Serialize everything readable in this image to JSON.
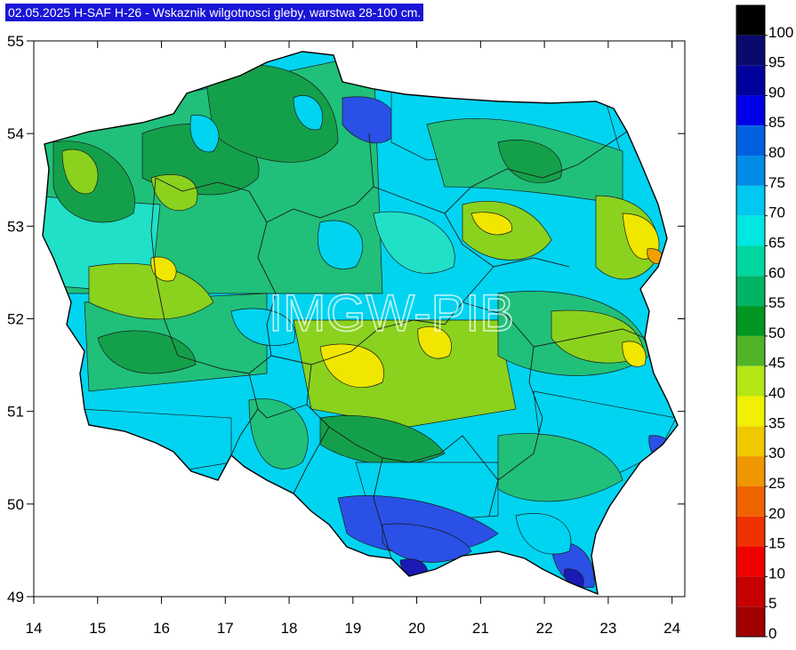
{
  "title": "02.05.2025 H-SAF H-26 - Wskaznik wilgotnosci gleby, warstwa 28-100 cm.",
  "watermark": "IMGW-PIB",
  "axes": {
    "x_ticks": [
      "14",
      "15",
      "16",
      "17",
      "18",
      "19",
      "20",
      "21",
      "22",
      "23",
      "24"
    ],
    "y_ticks": [
      "55",
      "54",
      "53",
      "52",
      "51",
      "50",
      "49"
    ],
    "x_range": [
      14,
      24.2
    ],
    "y_range": [
      49,
      55
    ]
  },
  "color_scale": {
    "levels": [
      "100",
      "95",
      "90",
      "85",
      "80",
      "75",
      "70",
      "65",
      "60",
      "55",
      "50",
      "45",
      "40",
      "35",
      "30",
      "25",
      "20",
      "15",
      "10",
      "5",
      "0"
    ],
    "colors": [
      "#000000",
      "#0a0a6e",
      "#00009c",
      "#0000e8",
      "#0060e0",
      "#008ce6",
      "#00c8f0",
      "#00e6e0",
      "#00d7a0",
      "#00b464",
      "#009620",
      "#50b428",
      "#b4e614",
      "#f0f000",
      "#f0c800",
      "#f09600",
      "#f06400",
      "#f03200",
      "#f00000",
      "#c80000",
      "#a00000"
    ]
  },
  "map_fill_colors": {
    "blue": "#2a50e6",
    "cyan": "#00d4f0",
    "teal": "#20e0c8",
    "green": "#20c07a",
    "darkgreen": "#14a04a",
    "lime": "#8ad21e",
    "yellow": "#f0e600",
    "navy": "#1a1ab4",
    "orange": "#f0a000"
  }
}
